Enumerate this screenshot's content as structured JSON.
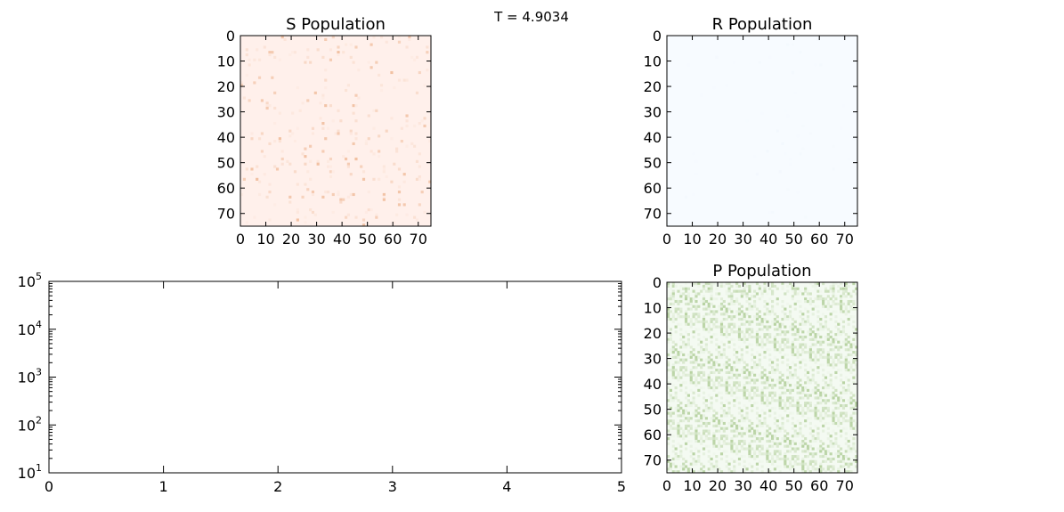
{
  "suptitle": "T = 4.9034",
  "chart_data": [
    {
      "id": "s",
      "type": "heatmap",
      "title": "S Population",
      "colormap": "Reds",
      "low_color": "#fff0eb",
      "high_color": "#e8a070",
      "xlim": [
        0,
        75
      ],
      "ylim": [
        75,
        0
      ],
      "xticks": [
        0,
        10,
        20,
        30,
        40,
        50,
        60,
        70
      ],
      "yticks": [
        0,
        10,
        20,
        30,
        40,
        50,
        60,
        70
      ],
      "grid": false
    },
    {
      "id": "r",
      "type": "heatmap",
      "title": "R Population",
      "colormap": "Blues",
      "low_color": "#f7fbff",
      "high_color": "#eef4fc",
      "xlim": [
        0,
        75
      ],
      "ylim": [
        75,
        0
      ],
      "xticks": [
        0,
        10,
        20,
        30,
        40,
        50,
        60,
        70
      ],
      "yticks": [
        0,
        10,
        20,
        30,
        40,
        50,
        60,
        70
      ],
      "grid": false
    },
    {
      "id": "p",
      "type": "heatmap",
      "title": "P Population",
      "colormap": "Greens",
      "low_color": "#f4faf2",
      "high_color": "#a9c98f",
      "xlim": [
        0,
        75
      ],
      "ylim": [
        75,
        0
      ],
      "xticks": [
        0,
        10,
        20,
        30,
        40,
        50,
        60,
        70
      ],
      "yticks": [
        0,
        10,
        20,
        30,
        40,
        50,
        60,
        70
      ],
      "grid": false
    },
    {
      "id": "line",
      "type": "line",
      "title": "",
      "xlabel": "",
      "ylabel": "",
      "xlim": [
        0,
        5
      ],
      "ylim": [
        10,
        100000
      ],
      "yscale": "log",
      "xticks": [
        0,
        1,
        2,
        3,
        4,
        5
      ],
      "ytick_base": "10",
      "ytick_exponents": [
        "1",
        "2",
        "3",
        "4",
        "5"
      ],
      "series": [],
      "grid": false
    }
  ]
}
